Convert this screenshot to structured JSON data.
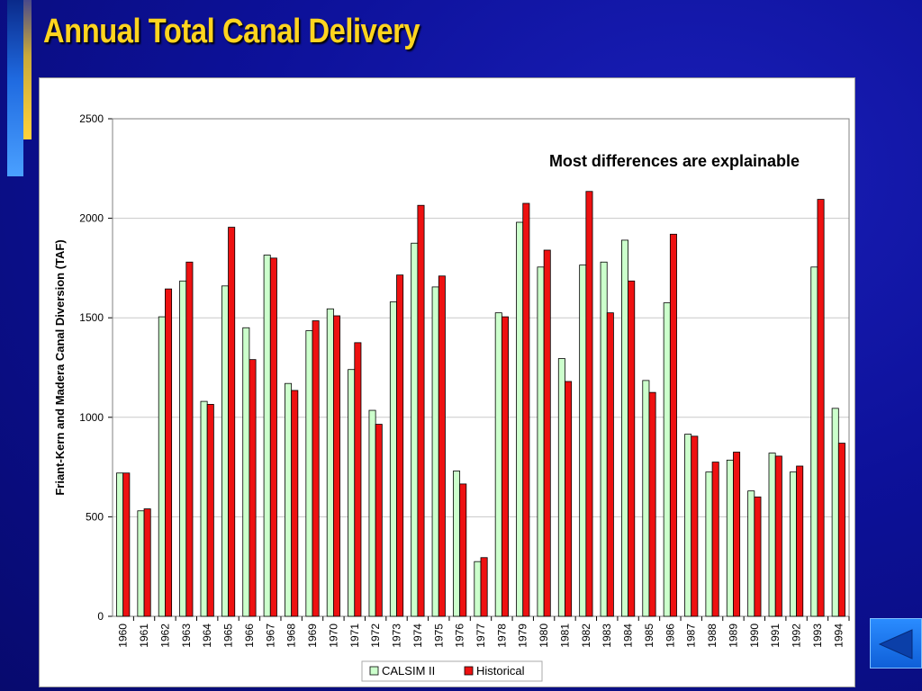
{
  "slide": {
    "title": "Annual Total Canal Delivery"
  },
  "colors": {
    "calsim_fill": "#ccffcc",
    "historical_fill": "#ee1111",
    "title": "#ffd41f"
  },
  "chart_data": {
    "type": "bar",
    "annotation": "Most differences are explainable",
    "ylabel": "Friant-Kern and Madera Canal Diversion (TAF)",
    "xlabel": "",
    "ylim": [
      0,
      2500
    ],
    "yticks": [
      0,
      500,
      1000,
      1500,
      2000,
      2500
    ],
    "grid": true,
    "legend_position": "bottom-center",
    "categories": [
      "1960",
      "1961",
      "1962",
      "1963",
      "1964",
      "1965",
      "1966",
      "1967",
      "1968",
      "1969",
      "1970",
      "1971",
      "1972",
      "1973",
      "1974",
      "1975",
      "1976",
      "1977",
      "1978",
      "1979",
      "1980",
      "1981",
      "1982",
      "1983",
      "1984",
      "1985",
      "1986",
      "1987",
      "1988",
      "1989",
      "1990",
      "1991",
      "1992",
      "1993",
      "1994"
    ],
    "series": [
      {
        "name": "CALSIM II",
        "values": [
          720,
          530,
          1505,
          1685,
          1080,
          1660,
          1450,
          1815,
          1170,
          1435,
          1545,
          1240,
          1035,
          1580,
          1875,
          1655,
          730,
          275,
          1525,
          1980,
          1755,
          1295,
          1765,
          1780,
          1890,
          1185,
          1575,
          915,
          725,
          785,
          630,
          820,
          725,
          1755,
          1045
        ]
      },
      {
        "name": "Historical",
        "values": [
          720,
          540,
          1645,
          1780,
          1065,
          1955,
          1290,
          1800,
          1135,
          1485,
          1510,
          1375,
          965,
          1715,
          2065,
          1710,
          665,
          295,
          1505,
          2075,
          1840,
          1180,
          2135,
          1525,
          1685,
          1125,
          1920,
          905,
          775,
          825,
          600,
          805,
          755,
          2095,
          870
        ]
      }
    ]
  }
}
